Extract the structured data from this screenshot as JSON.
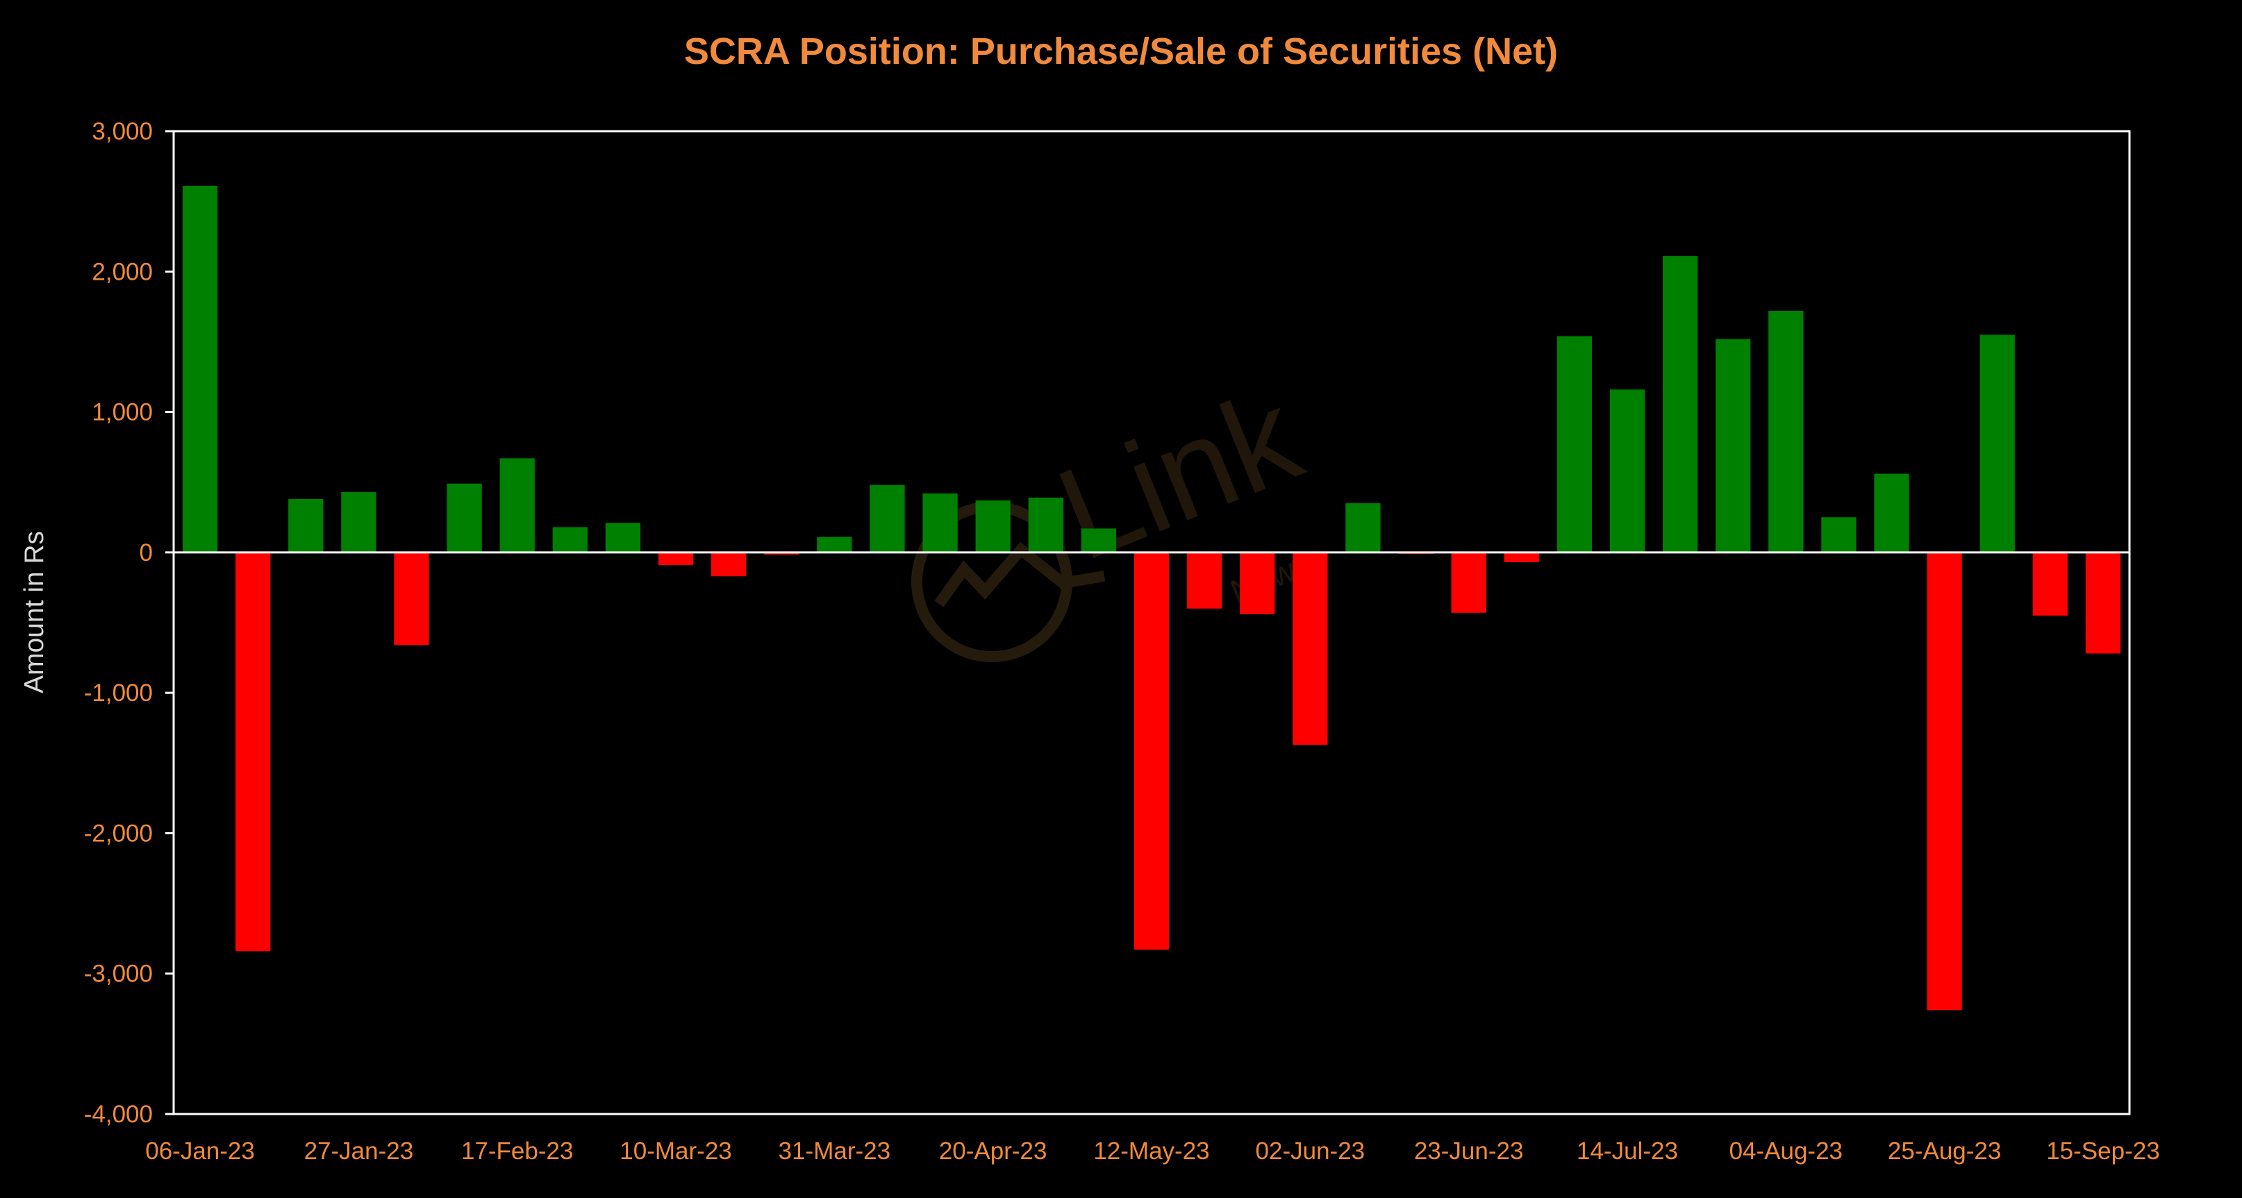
{
  "chart_data": {
    "type": "bar",
    "title": "SCRA Position: Purchase/Sale of Securities (Net)",
    "xlabel": "",
    "ylabel": "Amount in Rs",
    "ylim": [
      -4000,
      3000
    ],
    "y_ticks": [
      3000,
      2000,
      1000,
      0,
      -1000,
      -2000,
      -3000,
      -4000
    ],
    "y_tick_labels": [
      "3,000",
      "2,000",
      "1,000",
      "0",
      "-1,000",
      "-2,000",
      "-3,000",
      "-4,000"
    ],
    "x_tick_labels": [
      "06-Jan-23",
      "27-Jan-23",
      "17-Feb-23",
      "10-Mar-23",
      "31-Mar-23",
      "20-Apr-23",
      "12-May-23",
      "02-Jun-23",
      "23-Jun-23",
      "14-Jul-23",
      "04-Aug-23",
      "25-Aug-23",
      "15-Sep-23"
    ],
    "x_tick_every": 3,
    "grid": false,
    "legend": "none",
    "positive_color": "#008000",
    "negative_color": "#ff0000",
    "title_color": "#f08a3c",
    "tick_color": "#f08a3c",
    "axis_color": "#ffffff",
    "ylabel_color": "#d9d9d9",
    "values": [
      2610,
      -2840,
      380,
      430,
      -660,
      490,
      670,
      180,
      210,
      -90,
      -170,
      -15,
      110,
      480,
      420,
      370,
      390,
      170,
      -2830,
      -400,
      -440,
      -1370,
      350,
      -10,
      -430,
      -70,
      1540,
      1160,
      2110,
      1520,
      1720,
      250,
      560,
      -3260,
      1550,
      -450,
      -720
    ]
  },
  "watermark": {
    "main": "Link",
    "sub": "News"
  }
}
